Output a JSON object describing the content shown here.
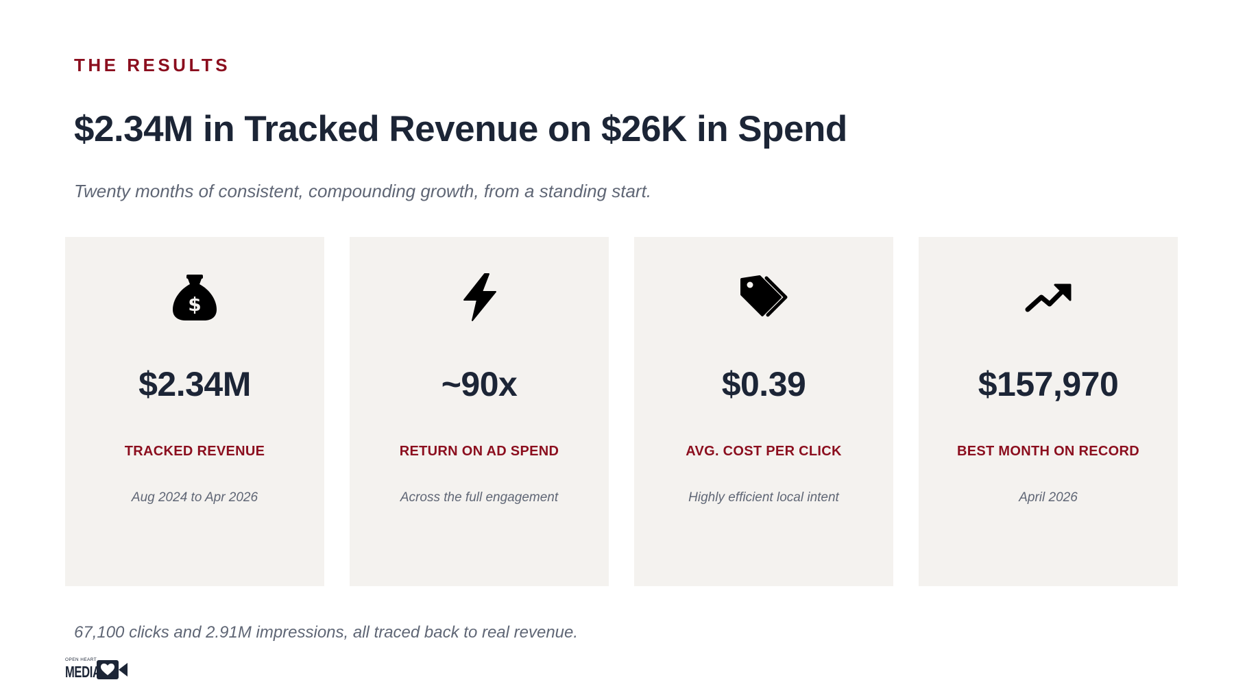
{
  "eyebrow": "THE RESULTS",
  "headline": "$2.34M in Tracked Revenue on $26K in Spend",
  "subheadline": "Twenty months of consistent, compounding growth, from a standing start.",
  "cards": [
    {
      "icon": "money-bag-icon",
      "value": "$2.34M",
      "label": "TRACKED REVENUE",
      "sub": "Aug 2024 to Apr 2026"
    },
    {
      "icon": "lightning-bolt-icon",
      "value": "~90x",
      "label": "RETURN ON AD SPEND",
      "sub": "Across the full engagement"
    },
    {
      "icon": "price-tags-icon",
      "value": "$0.39",
      "label": "AVG. COST PER CLICK",
      "sub": "Highly efficient local intent"
    },
    {
      "icon": "trending-up-icon",
      "value": "$157,970",
      "label": "BEST MONTH ON RECORD",
      "sub": "April 2026"
    }
  ],
  "footnote": "67,100 clicks and 2.91M impressions, all traced back to real revenue.",
  "logo": {
    "small_text": "OPEN HEART",
    "big_text": "MEDIA"
  },
  "colors": {
    "accent": "#8b0e1e",
    "heading": "#1c2536",
    "muted": "#5f6675",
    "card_bg": "#f4f2ef"
  }
}
